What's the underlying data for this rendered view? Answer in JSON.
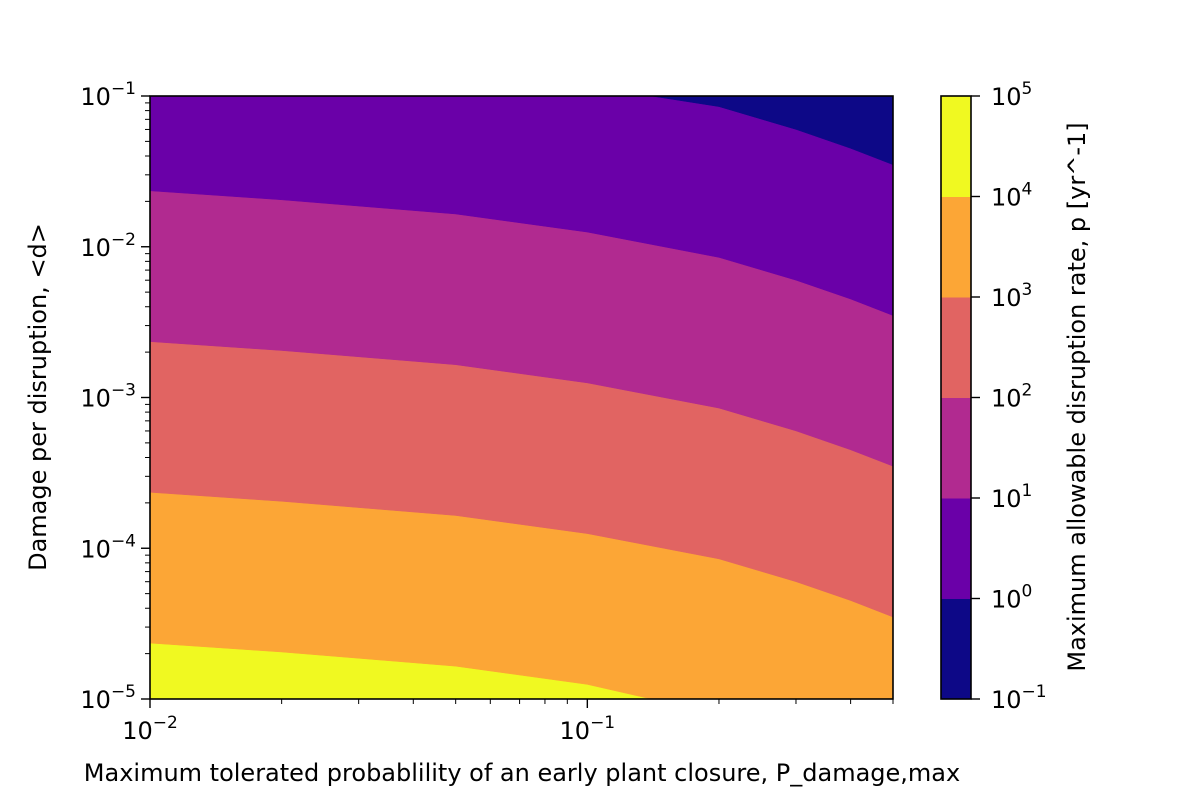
{
  "chart_data": {
    "type": "contourf",
    "xlabel": "Maximum tolerated probablility of an early plant closure, P_damage,max",
    "ylabel": "Damage per disruption, <d>",
    "colorbar_label": "Maximum allowable disruption rate, p [yr^-1]",
    "xscale": "log",
    "yscale": "log",
    "xlim": [
      0.01,
      0.5
    ],
    "ylim": [
      1e-05,
      0.1
    ],
    "x_ticks": [
      {
        "base": "10",
        "exp": "−2"
      },
      {
        "base": "10",
        "exp": "−1"
      }
    ],
    "y_ticks": [
      {
        "base": "10",
        "exp": "−5"
      },
      {
        "base": "10",
        "exp": "−4"
      },
      {
        "base": "10",
        "exp": "−3"
      },
      {
        "base": "10",
        "exp": "−2"
      },
      {
        "base": "10",
        "exp": "−1"
      }
    ],
    "colorbar_ticks": [
      {
        "base": "10",
        "exp": "−1"
      },
      {
        "base": "10",
        "exp": "0"
      },
      {
        "base": "10",
        "exp": "1"
      },
      {
        "base": "10",
        "exp": "2"
      },
      {
        "base": "10",
        "exp": "3"
      },
      {
        "base": "10",
        "exp": "4"
      },
      {
        "base": "10",
        "exp": "5"
      }
    ],
    "levels": [
      0.1,
      1,
      10,
      100,
      1000,
      10000,
      100000
    ],
    "colormap": [
      "#0d0887",
      "#6a00a8",
      "#b12a90",
      "#e16462",
      "#fca636",
      "#f0f921"
    ],
    "level_boundaries": [
      {
        "level": 10000,
        "points": [
          [
            0.01,
            2.35e-05
          ],
          [
            0.02,
            2.05e-05
          ],
          [
            0.05,
            1.65e-05
          ],
          [
            0.1,
            1.25e-05
          ],
          [
            0.14,
            1e-05
          ]
        ]
      },
      {
        "level": 1000,
        "points": [
          [
            0.01,
            0.000235
          ],
          [
            0.02,
            0.000205
          ],
          [
            0.05,
            0.000165
          ],
          [
            0.1,
            0.000125
          ],
          [
            0.2,
            8.5e-05
          ],
          [
            0.3,
            6e-05
          ],
          [
            0.4,
            4.5e-05
          ],
          [
            0.5,
            3.5e-05
          ]
        ]
      },
      {
        "level": 100,
        "points": [
          [
            0.01,
            0.00235
          ],
          [
            0.02,
            0.00205
          ],
          [
            0.05,
            0.00165
          ],
          [
            0.1,
            0.00125
          ],
          [
            0.2,
            0.00085
          ],
          [
            0.3,
            0.0006
          ],
          [
            0.4,
            0.00045
          ],
          [
            0.5,
            0.00035
          ]
        ]
      },
      {
        "level": 10,
        "points": [
          [
            0.01,
            0.0235
          ],
          [
            0.02,
            0.0205
          ],
          [
            0.05,
            0.0165
          ],
          [
            0.1,
            0.0125
          ],
          [
            0.2,
            0.0085
          ],
          [
            0.3,
            0.006
          ],
          [
            0.4,
            0.0045
          ],
          [
            0.5,
            0.0035
          ]
        ]
      },
      {
        "level": 1,
        "points": [
          [
            0.14,
            0.1
          ],
          [
            0.2,
            0.085
          ],
          [
            0.3,
            0.06
          ],
          [
            0.4,
            0.045
          ],
          [
            0.5,
            0.035
          ]
        ]
      }
    ]
  }
}
